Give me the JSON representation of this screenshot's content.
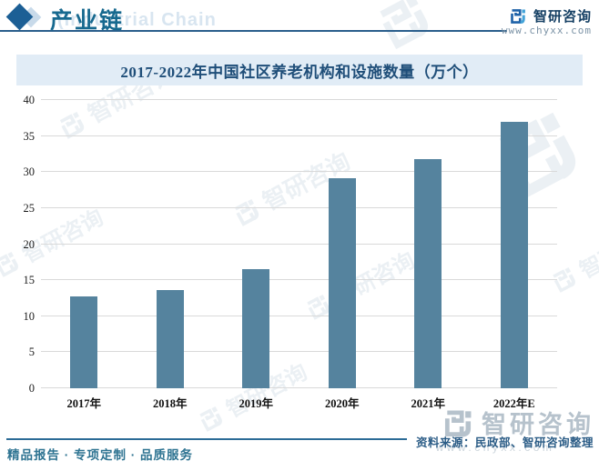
{
  "header": {
    "title": "产业链",
    "title_watermark": "(Industrial Chain",
    "brand_name": "智研咨询",
    "brand_url": "www.chyxx.com"
  },
  "chart_data": {
    "type": "bar",
    "title": "2017-2022年中国社区养老机构和设施数量（万个）",
    "categories": [
      "2017年",
      "2018年",
      "2019年",
      "2020年",
      "2021年",
      "2022年E"
    ],
    "values": [
      12.7,
      13.6,
      16.5,
      29.1,
      31.8,
      37.0
    ],
    "xlabel": "",
    "ylabel": "",
    "ylim": [
      0,
      40
    ],
    "yticks": [
      0,
      5,
      10,
      15,
      20,
      25,
      30,
      35,
      40
    ],
    "grid": true,
    "legend": false,
    "bar_color": "#55839e"
  },
  "footer": {
    "source": "资料来源：民政部、智研咨询整理",
    "tagline": "精品报告 · 专项定制 · 品质服务"
  },
  "watermark": {
    "brand_name": "智研咨询",
    "brand_url": "www.chyxx.com"
  },
  "colors": {
    "accent_teal": "#17698f",
    "header_rule": "#2a5e8c",
    "title_band_bg": "#e1ecf6",
    "title_text": "#1f4e79",
    "bar": "#55839e",
    "gridline": "#d9d9d9",
    "source_text": "#2b5c86",
    "tagline_text": "#2f7492"
  }
}
